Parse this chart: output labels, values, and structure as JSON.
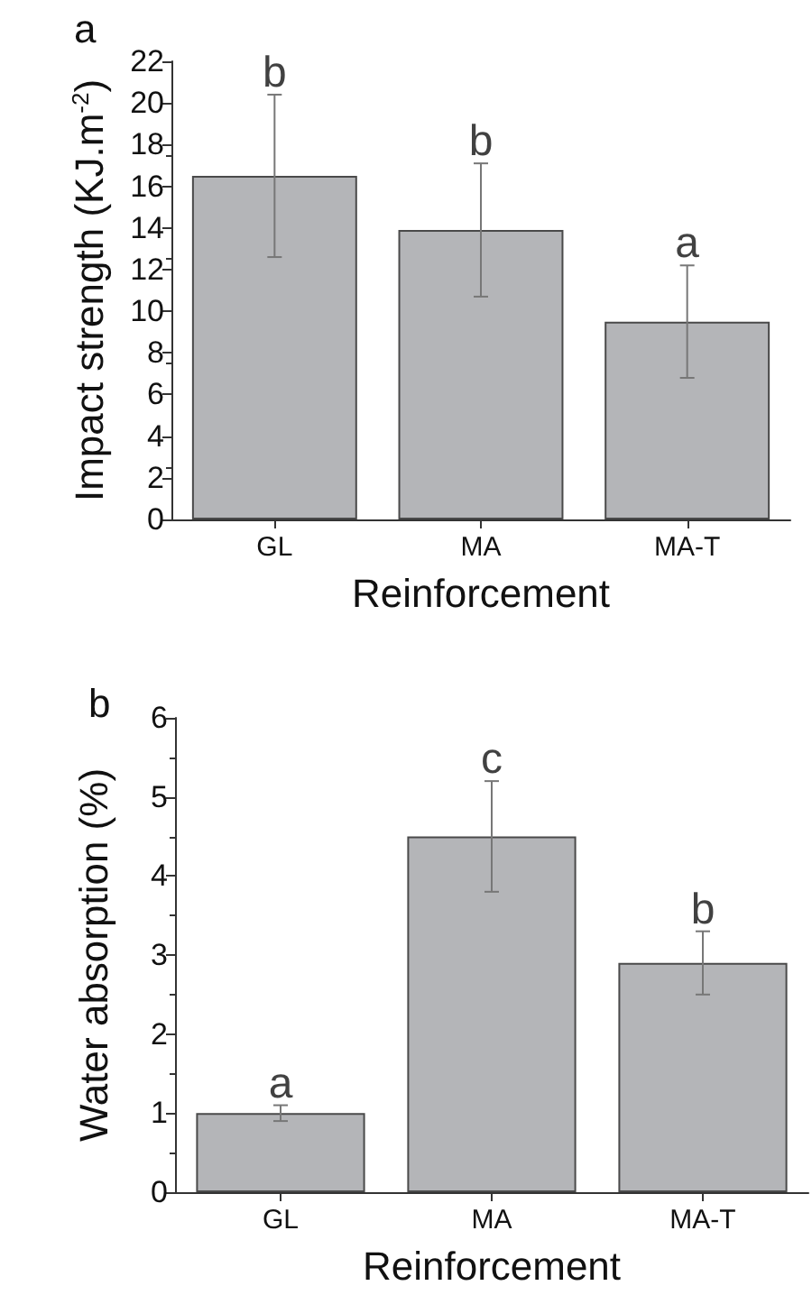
{
  "chart_data": [
    {
      "type": "bar",
      "title": "a",
      "xlabel": "Reinforcement",
      "ylabel": "Impact strength (KJ.m$^{-2}$)",
      "categories": [
        "GL",
        "MA",
        "MA-T"
      ],
      "values": [
        16.5,
        13.9,
        9.5
      ],
      "errors": [
        [
          12.6,
          20.4
        ],
        [
          10.7,
          17.1
        ],
        [
          6.8,
          12.2
        ]
      ],
      "color": "#b4b5b8",
      "ylim": [
        0,
        22
      ],
      "yticks": [
        0,
        2,
        4,
        6,
        8,
        10,
        12,
        14,
        16,
        18,
        20,
        22
      ],
      "grid": false,
      "annotations": [
        {
          "text": "b",
          "x": "GL",
          "y": 20.4
        },
        {
          "text": "b",
          "x": "MA",
          "y": 17.1
        },
        {
          "text": "a",
          "x": "MA-T",
          "y": 12.2
        }
      ]
    },
    {
      "type": "bar",
      "title": "b",
      "xlabel": "Reinforcement",
      "ylabel": "Water absorption (%)",
      "categories": [
        "GL",
        "MA",
        "MA-T"
      ],
      "values": [
        1.0,
        4.5,
        2.9
      ],
      "errors": [
        [
          0.9,
          1.1
        ],
        [
          3.8,
          5.2
        ],
        [
          2.5,
          3.3
        ]
      ],
      "color": "#b4b5b8",
      "ylim": [
        0,
        6
      ],
      "yticks": [
        0,
        1,
        2,
        3,
        4,
        5,
        6
      ],
      "grid": false,
      "annotations": [
        {
          "text": "a",
          "x": "GL",
          "y": 1.1
        },
        {
          "text": "c",
          "x": "MA",
          "y": 5.2
        },
        {
          "text": "b",
          "x": "MA-T",
          "y": 3.3
        }
      ]
    }
  ]
}
